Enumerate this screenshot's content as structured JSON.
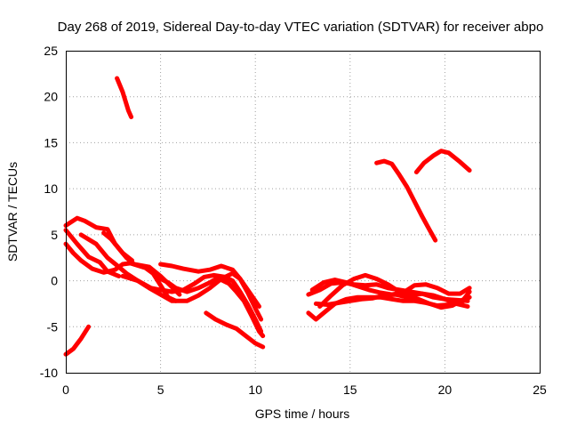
{
  "chart_data": {
    "type": "scatter",
    "title": "Day 268 of 2019, Sidereal Day-to-day VTEC variation (SDTVAR) for receiver abpo",
    "xlabel": "GPS time / hours",
    "ylabel": "SDTVAR / TECUs",
    "xlim": [
      0,
      25
    ],
    "ylim": [
      -10,
      25
    ],
    "xticks": [
      "0",
      "5",
      "10",
      "15",
      "20",
      "25"
    ],
    "yticks": [
      "-10",
      "-5",
      "0",
      "5",
      "10",
      "15",
      "20",
      "25"
    ],
    "grid": true,
    "color": "#ff0000",
    "series": [
      {
        "name": "track-1",
        "points": [
          [
            2.7,
            22.0
          ],
          [
            3.0,
            20.5
          ],
          [
            3.3,
            18.5
          ],
          [
            3.45,
            17.8
          ]
        ]
      },
      {
        "name": "track-2",
        "points": [
          [
            0.0,
            -8.0
          ],
          [
            0.4,
            -7.4
          ],
          [
            0.8,
            -6.3
          ],
          [
            1.2,
            -5.0
          ]
        ]
      },
      {
        "name": "track-3",
        "points": [
          [
            0.0,
            6.0
          ],
          [
            0.6,
            6.8
          ],
          [
            1.0,
            6.5
          ],
          [
            1.6,
            5.8
          ],
          [
            2.2,
            5.6
          ],
          [
            2.6,
            4.0
          ],
          [
            3.2,
            2.5
          ],
          [
            3.6,
            1.8
          ],
          [
            4.4,
            1.5
          ],
          [
            5.0,
            0.5
          ],
          [
            5.5,
            -0.5
          ],
          [
            6.0,
            -1.5
          ]
        ]
      },
      {
        "name": "track-4",
        "points": [
          [
            0.0,
            4.0
          ],
          [
            0.4,
            3.0
          ],
          [
            0.8,
            2.2
          ],
          [
            1.4,
            1.3
          ],
          [
            2.0,
            0.9
          ],
          [
            2.6,
            1.2
          ],
          [
            3.0,
            1.8
          ],
          [
            3.4,
            1.9
          ],
          [
            4.2,
            1.4
          ],
          [
            4.6,
            0.8
          ],
          [
            5.0,
            -0.5
          ],
          [
            5.4,
            -1.8
          ],
          [
            5.8,
            -2.2
          ]
        ]
      },
      {
        "name": "track-5",
        "points": [
          [
            0.0,
            5.5
          ],
          [
            0.6,
            4.0
          ],
          [
            1.2,
            2.6
          ],
          [
            1.8,
            2.0
          ],
          [
            2.2,
            1.0
          ],
          [
            2.8,
            0.5
          ]
        ]
      },
      {
        "name": "track-6",
        "points": [
          [
            0.8,
            5.0
          ],
          [
            1.6,
            4.0
          ],
          [
            2.2,
            2.5
          ],
          [
            2.8,
            1.5
          ],
          [
            3.2,
            0.8
          ],
          [
            3.8,
            0.0
          ],
          [
            4.4,
            -0.8
          ],
          [
            5.0,
            -1.5
          ],
          [
            5.6,
            -2.2
          ],
          [
            6.4,
            -2.2
          ],
          [
            7.0,
            -1.6
          ],
          [
            7.6,
            -0.8
          ],
          [
            8.2,
            0.2
          ],
          [
            8.8,
            0.8
          ],
          [
            9.2,
            0.2
          ],
          [
            9.6,
            -1.0
          ],
          [
            10.2,
            -2.8
          ]
        ]
      },
      {
        "name": "track-7",
        "points": [
          [
            2.0,
            5.2
          ],
          [
            2.4,
            4.5
          ],
          [
            3.0,
            3.0
          ],
          [
            3.5,
            2.2
          ]
        ]
      },
      {
        "name": "track-8",
        "points": [
          [
            3.0,
            0.5
          ],
          [
            3.8,
            0.0
          ],
          [
            4.5,
            -0.8
          ],
          [
            5.0,
            -1.0
          ],
          [
            5.6,
            -1.2
          ],
          [
            6.2,
            -1.0
          ],
          [
            6.8,
            -0.3
          ],
          [
            7.3,
            0.4
          ],
          [
            7.8,
            0.6
          ],
          [
            8.4,
            0.4
          ],
          [
            8.8,
            0.0
          ],
          [
            9.2,
            -1.2
          ],
          [
            9.6,
            -2.6
          ],
          [
            10.0,
            -4.2
          ],
          [
            10.3,
            -5.5
          ]
        ]
      },
      {
        "name": "track-9",
        "points": [
          [
            5.0,
            1.8
          ],
          [
            5.6,
            1.6
          ],
          [
            6.2,
            1.3
          ],
          [
            7.0,
            1.0
          ],
          [
            7.6,
            1.2
          ],
          [
            8.2,
            1.6
          ],
          [
            8.8,
            1.2
          ],
          [
            9.2,
            0.2
          ],
          [
            9.6,
            -1.3
          ],
          [
            10.0,
            -3.0
          ],
          [
            10.3,
            -4.2
          ]
        ]
      },
      {
        "name": "track-10",
        "points": [
          [
            4.8,
            0.4
          ],
          [
            5.4,
            -0.2
          ],
          [
            5.8,
            -0.8
          ],
          [
            6.4,
            -1.2
          ],
          [
            7.0,
            -0.8
          ],
          [
            7.6,
            -0.2
          ],
          [
            8.0,
            0.3
          ],
          [
            8.6,
            -0.3
          ],
          [
            9.0,
            -1.2
          ],
          [
            9.4,
            -2.2
          ],
          [
            9.8,
            -3.8
          ],
          [
            10.2,
            -5.5
          ],
          [
            10.4,
            -6.0
          ]
        ]
      },
      {
        "name": "track-11",
        "points": [
          [
            7.4,
            -3.5
          ],
          [
            7.9,
            -4.2
          ],
          [
            8.5,
            -4.8
          ],
          [
            9.0,
            -5.2
          ],
          [
            9.5,
            -6.0
          ],
          [
            10.0,
            -6.8
          ],
          [
            10.4,
            -7.2
          ]
        ]
      },
      {
        "name": "track-12",
        "points": [
          [
            16.4,
            12.8
          ],
          [
            16.8,
            13.0
          ],
          [
            17.2,
            12.7
          ],
          [
            17.6,
            11.5
          ],
          [
            18.0,
            10.2
          ],
          [
            18.4,
            8.6
          ],
          [
            18.8,
            7.0
          ],
          [
            19.2,
            5.5
          ],
          [
            19.5,
            4.4
          ]
        ]
      },
      {
        "name": "track-13",
        "points": [
          [
            18.5,
            11.8
          ],
          [
            18.9,
            12.8
          ],
          [
            19.4,
            13.6
          ],
          [
            19.8,
            14.1
          ],
          [
            20.2,
            13.9
          ],
          [
            20.8,
            12.9
          ],
          [
            21.3,
            12.0
          ]
        ]
      },
      {
        "name": "track-14",
        "points": [
          [
            12.8,
            -1.5
          ],
          [
            13.4,
            -1.0
          ],
          [
            14.0,
            -0.3
          ],
          [
            14.6,
            -0.2
          ],
          [
            15.2,
            -0.4
          ],
          [
            15.8,
            -0.5
          ],
          [
            16.4,
            -0.4
          ],
          [
            17.0,
            -0.8
          ],
          [
            17.6,
            -1.0
          ],
          [
            18.2,
            -1.2
          ],
          [
            18.8,
            -1.4
          ],
          [
            19.4,
            -1.8
          ],
          [
            20.0,
            -2.0
          ],
          [
            20.6,
            -2.1
          ],
          [
            21.2,
            -2.2
          ]
        ]
      },
      {
        "name": "track-15",
        "points": [
          [
            12.8,
            -3.5
          ],
          [
            13.2,
            -4.2
          ],
          [
            13.6,
            -3.5
          ],
          [
            14.2,
            -2.5
          ],
          [
            14.8,
            -2.0
          ],
          [
            15.4,
            -1.8
          ],
          [
            16.0,
            -1.8
          ],
          [
            16.6,
            -1.8
          ],
          [
            17.2,
            -2.0
          ],
          [
            17.8,
            -2.2
          ],
          [
            18.4,
            -2.2
          ],
          [
            19.0,
            -2.4
          ],
          [
            19.6,
            -2.7
          ],
          [
            20.2,
            -2.6
          ],
          [
            21.0,
            -2.2
          ],
          [
            21.3,
            -1.8
          ]
        ]
      },
      {
        "name": "track-16",
        "points": [
          [
            13.4,
            -2.8
          ],
          [
            14.0,
            -1.6
          ],
          [
            14.6,
            -0.5
          ],
          [
            15.2,
            0.2
          ],
          [
            15.8,
            0.6
          ],
          [
            16.4,
            0.2
          ],
          [
            17.0,
            -0.4
          ],
          [
            17.6,
            -1.2
          ],
          [
            18.2,
            -1.6
          ],
          [
            18.8,
            -1.4
          ],
          [
            19.4,
            -1.6
          ],
          [
            20.0,
            -2.0
          ],
          [
            20.6,
            -2.5
          ],
          [
            21.2,
            -2.8
          ]
        ]
      },
      {
        "name": "track-17",
        "points": [
          [
            13.2,
            -2.5
          ],
          [
            13.8,
            -2.6
          ],
          [
            14.4,
            -2.4
          ],
          [
            15.0,
            -2.2
          ],
          [
            15.6,
            -2.0
          ],
          [
            16.2,
            -1.9
          ],
          [
            16.8,
            -1.6
          ],
          [
            17.4,
            -1.5
          ],
          [
            18.0,
            -1.8
          ],
          [
            18.6,
            -2.0
          ],
          [
            19.2,
            -2.5
          ],
          [
            19.8,
            -2.9
          ],
          [
            20.4,
            -2.7
          ],
          [
            21.0,
            -2.0
          ],
          [
            21.3,
            -1.2
          ]
        ]
      },
      {
        "name": "track-18",
        "points": [
          [
            13.0,
            -1.0
          ],
          [
            13.6,
            -0.2
          ],
          [
            14.2,
            0.1
          ],
          [
            14.8,
            -0.2
          ],
          [
            15.4,
            -0.6
          ],
          [
            16.0,
            -1.0
          ],
          [
            16.6,
            -1.3
          ],
          [
            17.2,
            -1.5
          ],
          [
            17.8,
            -1.3
          ],
          [
            18.4,
            -0.5
          ],
          [
            19.0,
            -0.4
          ],
          [
            19.6,
            -0.8
          ],
          [
            20.2,
            -1.4
          ],
          [
            20.8,
            -1.4
          ],
          [
            21.3,
            -0.8
          ]
        ]
      }
    ]
  }
}
